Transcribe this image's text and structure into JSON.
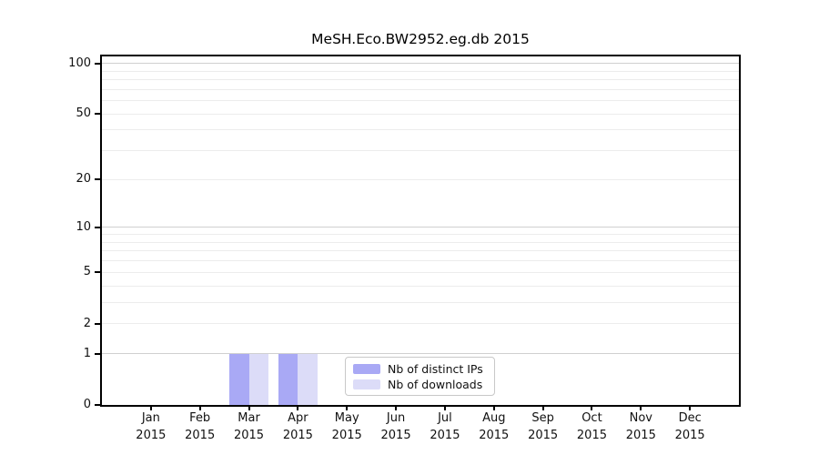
{
  "title": "MeSH.Eco.BW2952.eg.db 2015",
  "chart_data": {
    "type": "bar",
    "title": "MeSH.Eco.BW2952.eg.db 2015",
    "categories": [
      "Jan 2015",
      "Feb 2015",
      "Mar 2015",
      "Apr 2015",
      "May 2015",
      "Jun 2015",
      "Jul 2015",
      "Aug 2015",
      "Sep 2015",
      "Oct 2015",
      "Nov 2015",
      "Dec 2015"
    ],
    "series": [
      {
        "name": "Nb of distinct IPs",
        "color": "#a9a9f5",
        "values": [
          0,
          0,
          1,
          1,
          0,
          0,
          0,
          0,
          0,
          0,
          0,
          0
        ]
      },
      {
        "name": "Nb of downloads",
        "color": "#dcdcf8",
        "values": [
          0,
          0,
          1,
          1,
          0,
          0,
          0,
          0,
          0,
          0,
          0,
          0
        ]
      }
    ],
    "xlabel": "",
    "ylabel": "",
    "yscale": "log1p",
    "ylim": [
      0,
      110
    ],
    "yticks": [
      0,
      1,
      2,
      5,
      10,
      20,
      50,
      100
    ],
    "minor_gridlines": [
      2,
      3,
      4,
      5,
      6,
      7,
      8,
      9,
      20,
      30,
      40,
      50,
      60,
      70,
      80,
      90
    ],
    "decade_gridlines": [
      1,
      10,
      100
    ],
    "grid": "horizontal",
    "legend_position": "bottom-center-inside"
  },
  "colors": {
    "background": "#ffffff",
    "axis": "#000000",
    "minor_grid": "#ececec",
    "decade_grid": "#d0d0d0",
    "legend_border": "#c8c8c8",
    "bar_distinct_ips": "#a9a9f5",
    "bar_downloads": "#dcdcf8"
  }
}
